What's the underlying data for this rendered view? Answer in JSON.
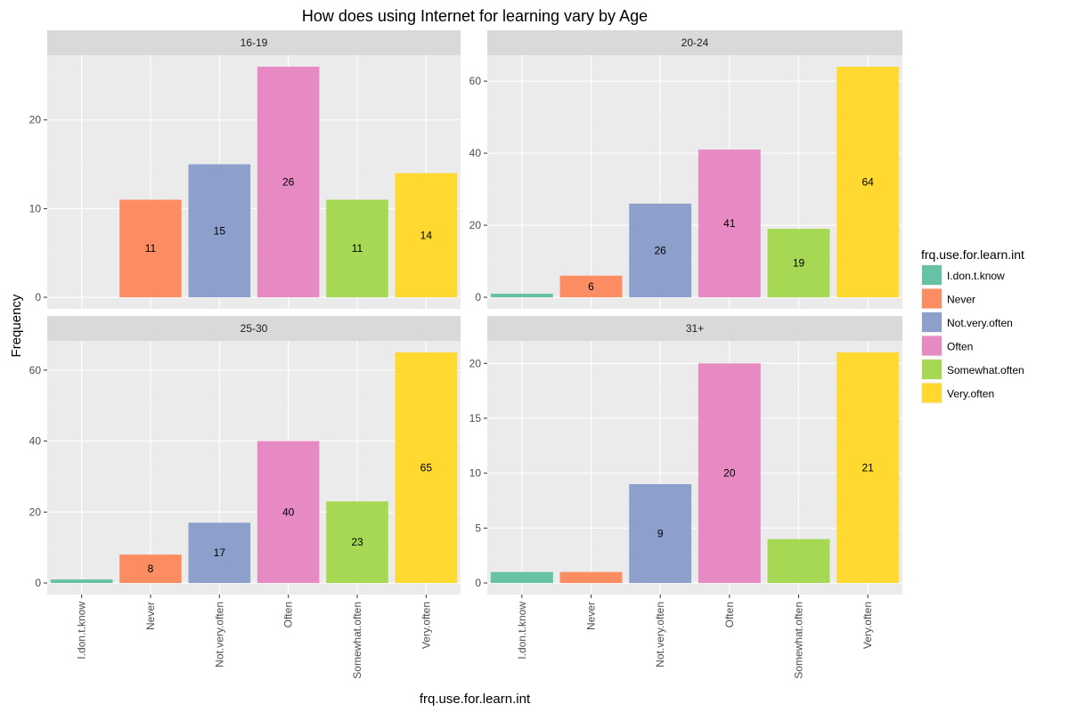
{
  "chart_data": {
    "type": "bar",
    "title": "How does using Internet for learning vary by Age",
    "xlabel": "frq.use.for.learn.int",
    "ylabel": "Frequency",
    "grid": true,
    "legend_position": "right",
    "legend_title": "frq.use.for.learn.int",
    "categories": [
      "I.don.t.know",
      "Never",
      "Not.very.often",
      "Often",
      "Somewhat.often",
      "Very.often"
    ],
    "colors": [
      "#66C2A5",
      "#FC8D62",
      "#8DA0CB",
      "#E78AC3",
      "#A6D854",
      "#FFD92F"
    ],
    "panels": [
      {
        "strip": "16-19",
        "values": [
          0,
          11,
          15,
          26,
          11,
          14
        ],
        "labels": [
          "",
          "11",
          "15",
          "26",
          "11",
          "14"
        ],
        "ylim": [
          -1.3,
          27.3
        ],
        "yticks": [
          0,
          10,
          20
        ]
      },
      {
        "strip": "20-24",
        "values": [
          1,
          6,
          26,
          41,
          19,
          64
        ],
        "labels": [
          "",
          "6",
          "26",
          "41",
          "19",
          "64"
        ],
        "ylim": [
          -3.2,
          67.2
        ],
        "yticks": [
          0,
          20,
          40,
          60
        ]
      },
      {
        "strip": "25-30",
        "values": [
          1,
          8,
          17,
          40,
          23,
          65
        ],
        "labels": [
          "",
          "8",
          "17",
          "40",
          "23",
          "65"
        ],
        "ylim": [
          -3.25,
          68.25
        ],
        "yticks": [
          0,
          20,
          40,
          60
        ]
      },
      {
        "strip": "31+",
        "values": [
          1,
          1,
          9,
          20,
          4,
          21
        ],
        "labels": [
          "",
          "",
          "9",
          "20",
          "",
          "21"
        ],
        "ylim": [
          -1.05,
          22.05
        ],
        "yticks": [
          0,
          5,
          10,
          15,
          20
        ]
      }
    ]
  }
}
